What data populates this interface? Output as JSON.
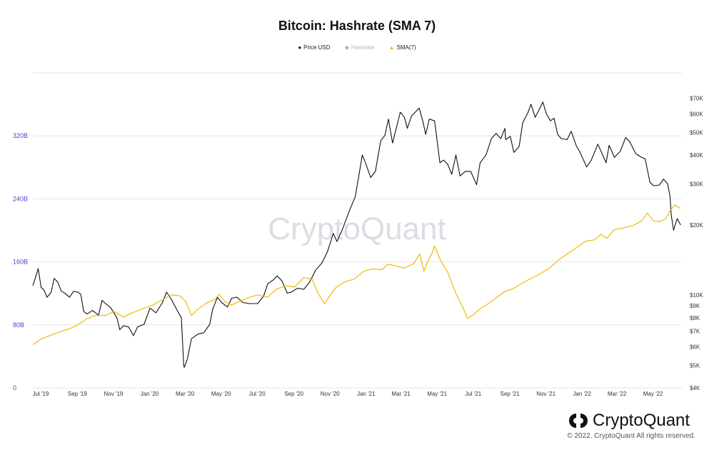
{
  "chart_data": {
    "type": "line",
    "title": "Bitcoin: Hashrate (SMA 7)",
    "watermark": "CryptoQuant",
    "x_ticks": [
      "Jul '19",
      "Sep '19",
      "Nov '19",
      "Jan '20",
      "Mar '20",
      "May '20",
      "Jul '20",
      "Sep '20",
      "Nov '20",
      "Jan '21",
      "Mar '21",
      "May '21",
      "Jul '21",
      "Sep '21",
      "Nov '21",
      "Jan '22",
      "Mar '22",
      "May '22"
    ],
    "y_left": {
      "ticks": [
        "0",
        "80B",
        "160B",
        "240B",
        "320B"
      ],
      "values": [
        0,
        80,
        160,
        240,
        320
      ],
      "range": [
        0,
        400
      ],
      "unit": "B"
    },
    "y_right": {
      "scale": "log",
      "ticks": [
        "$4K",
        "$5K",
        "$6K",
        "$7K",
        "$8K",
        "$9K",
        "$10K",
        "$20K",
        "$30K",
        "$40K",
        "$50K",
        "$60K",
        "$70K"
      ],
      "values": [
        4,
        5,
        6,
        7,
        8,
        9,
        10,
        20,
        30,
        40,
        50,
        60,
        70
      ],
      "range": [
        4,
        90
      ],
      "unit": "K USD"
    },
    "legend_placement": "top-center",
    "grid": "horizontal",
    "series": [
      {
        "name": "Price USD",
        "color": "#111111",
        "axis": "right",
        "visible": true,
        "points": [
          [
            "2019-07-01",
            11.0
          ],
          [
            "2019-07-05",
            11.8
          ],
          [
            "2019-07-10",
            13.0
          ],
          [
            "2019-07-15",
            10.8
          ],
          [
            "2019-07-20",
            10.5
          ],
          [
            "2019-07-25",
            9.8
          ],
          [
            "2019-08-01",
            10.3
          ],
          [
            "2019-08-06",
            11.8
          ],
          [
            "2019-08-12",
            11.4
          ],
          [
            "2019-08-18",
            10.4
          ],
          [
            "2019-08-24",
            10.2
          ],
          [
            "2019-09-01",
            9.8
          ],
          [
            "2019-09-08",
            10.4
          ],
          [
            "2019-09-15",
            10.3
          ],
          [
            "2019-09-20",
            10.1
          ],
          [
            "2019-09-25",
            8.5
          ],
          [
            "2019-10-01",
            8.3
          ],
          [
            "2019-10-10",
            8.6
          ],
          [
            "2019-10-20",
            8.2
          ],
          [
            "2019-10-26",
            9.5
          ],
          [
            "2019-11-01",
            9.2
          ],
          [
            "2019-11-10",
            8.8
          ],
          [
            "2019-11-20",
            8.0
          ],
          [
            "2019-11-25",
            7.1
          ],
          [
            "2019-12-01",
            7.4
          ],
          [
            "2019-12-10",
            7.3
          ],
          [
            "2019-12-18",
            6.7
          ],
          [
            "2019-12-25",
            7.3
          ],
          [
            "2020-01-05",
            7.5
          ],
          [
            "2020-01-15",
            8.8
          ],
          [
            "2020-01-25",
            8.4
          ],
          [
            "2020-02-05",
            9.3
          ],
          [
            "2020-02-12",
            10.3
          ],
          [
            "2020-02-20",
            9.6
          ],
          [
            "2020-03-01",
            8.6
          ],
          [
            "2020-03-08",
            8.0
          ],
          [
            "2020-03-12",
            5.0
          ],
          [
            "2020-03-13",
            4.9
          ],
          [
            "2020-03-18",
            5.3
          ],
          [
            "2020-03-25",
            6.5
          ],
          [
            "2020-04-05",
            6.8
          ],
          [
            "2020-04-15",
            6.9
          ],
          [
            "2020-04-25",
            7.5
          ],
          [
            "2020-04-30",
            8.7
          ],
          [
            "2020-05-08",
            9.8
          ],
          [
            "2020-05-15",
            9.3
          ],
          [
            "2020-05-25",
            8.9
          ],
          [
            "2020-06-01",
            9.7
          ],
          [
            "2020-06-10",
            9.8
          ],
          [
            "2020-06-20",
            9.3
          ],
          [
            "2020-07-01",
            9.2
          ],
          [
            "2020-07-15",
            9.2
          ],
          [
            "2020-07-25",
            9.9
          ],
          [
            "2020-08-01",
            11.2
          ],
          [
            "2020-08-10",
            11.6
          ],
          [
            "2020-08-17",
            12.1
          ],
          [
            "2020-08-25",
            11.5
          ],
          [
            "2020-09-03",
            10.2
          ],
          [
            "2020-09-10",
            10.3
          ],
          [
            "2020-09-20",
            10.7
          ],
          [
            "2020-10-01",
            10.6
          ],
          [
            "2020-10-10",
            11.3
          ],
          [
            "2020-10-21",
            12.8
          ],
          [
            "2020-11-01",
            13.8
          ],
          [
            "2020-11-10",
            15.4
          ],
          [
            "2020-11-20",
            18.4
          ],
          [
            "2020-11-26",
            17.0
          ],
          [
            "2020-12-05",
            19.1
          ],
          [
            "2020-12-17",
            23.0
          ],
          [
            "2020-12-27",
            26.5
          ],
          [
            "2021-01-08",
            40.0
          ],
          [
            "2021-01-15",
            36.0
          ],
          [
            "2021-01-22",
            32.0
          ],
          [
            "2021-01-30",
            34.0
          ],
          [
            "2021-02-08",
            46.0
          ],
          [
            "2021-02-15",
            48.5
          ],
          [
            "2021-02-21",
            57.0
          ],
          [
            "2021-02-28",
            45.0
          ],
          [
            "2021-03-13",
            61.0
          ],
          [
            "2021-03-20",
            58.0
          ],
          [
            "2021-03-25",
            52.0
          ],
          [
            "2021-04-01",
            58.7
          ],
          [
            "2021-04-14",
            63.5
          ],
          [
            "2021-04-20",
            56.0
          ],
          [
            "2021-04-25",
            49.0
          ],
          [
            "2021-05-01",
            57.0
          ],
          [
            "2021-05-10",
            56.0
          ],
          [
            "2021-05-13",
            49.0
          ],
          [
            "2021-05-19",
            37.0
          ],
          [
            "2021-05-25",
            38.0
          ],
          [
            "2021-06-01",
            36.5
          ],
          [
            "2021-06-08",
            33.0
          ],
          [
            "2021-06-15",
            40.0
          ],
          [
            "2021-06-22",
            32.5
          ],
          [
            "2021-07-01",
            34.0
          ],
          [
            "2021-07-10",
            34.0
          ],
          [
            "2021-07-20",
            29.8
          ],
          [
            "2021-07-26",
            37.0
          ],
          [
            "2021-08-05",
            40.0
          ],
          [
            "2021-08-14",
            47.0
          ],
          [
            "2021-08-22",
            49.5
          ],
          [
            "2021-08-30",
            47.0
          ],
          [
            "2021-09-06",
            52.0
          ],
          [
            "2021-09-07",
            46.5
          ],
          [
            "2021-09-15",
            48.0
          ],
          [
            "2021-09-21",
            41.0
          ],
          [
            "2021-09-30",
            43.5
          ],
          [
            "2021-10-06",
            55.0
          ],
          [
            "2021-10-15",
            61.0
          ],
          [
            "2021-10-20",
            66.0
          ],
          [
            "2021-10-27",
            58.0
          ],
          [
            "2021-11-02",
            62.0
          ],
          [
            "2021-11-09",
            67.5
          ],
          [
            "2021-11-15",
            60.0
          ],
          [
            "2021-11-22",
            56.0
          ],
          [
            "2021-11-28",
            57.5
          ],
          [
            "2021-12-04",
            49.0
          ],
          [
            "2021-12-10",
            47.0
          ],
          [
            "2021-12-20",
            46.5
          ],
          [
            "2021-12-27",
            50.5
          ],
          [
            "2022-01-05",
            43.5
          ],
          [
            "2022-01-10",
            41.5
          ],
          [
            "2022-01-22",
            35.5
          ],
          [
            "2022-01-30",
            38.0
          ],
          [
            "2022-02-10",
            44.5
          ],
          [
            "2022-02-18",
            40.0
          ],
          [
            "2022-02-24",
            37.0
          ],
          [
            "2022-03-01",
            44.0
          ],
          [
            "2022-03-10",
            39.0
          ],
          [
            "2022-03-20",
            41.5
          ],
          [
            "2022-03-29",
            47.5
          ],
          [
            "2022-04-05",
            45.5
          ],
          [
            "2022-04-15",
            40.5
          ],
          [
            "2022-04-25",
            39.0
          ],
          [
            "2022-05-01",
            38.5
          ],
          [
            "2022-05-09",
            30.5
          ],
          [
            "2022-05-15",
            29.5
          ],
          [
            "2022-05-25",
            29.7
          ],
          [
            "2022-06-01",
            31.5
          ],
          [
            "2022-06-08",
            30.0
          ],
          [
            "2022-06-12",
            26.6
          ],
          [
            "2022-06-14",
            22.1
          ],
          [
            "2022-06-18",
            19.0
          ],
          [
            "2022-06-24",
            21.3
          ],
          [
            "2022-06-30",
            20.0
          ]
        ]
      },
      {
        "name": "Hashrate",
        "color": "#aaaaaa",
        "axis": "left",
        "visible": false,
        "points": []
      },
      {
        "name": "SMA(7)",
        "color": "#f0b90b",
        "axis": "left",
        "visible": true,
        "points": [
          [
            "2019-07-01",
            55
          ],
          [
            "2019-07-15",
            62
          ],
          [
            "2019-08-01",
            67
          ],
          [
            "2019-08-15",
            71
          ],
          [
            "2019-09-01",
            75
          ],
          [
            "2019-09-15",
            80
          ],
          [
            "2019-10-01",
            88
          ],
          [
            "2019-10-15",
            92
          ],
          [
            "2019-11-01",
            92
          ],
          [
            "2019-11-15",
            97
          ],
          [
            "2019-12-01",
            90
          ],
          [
            "2019-12-15",
            95
          ],
          [
            "2020-01-01",
            100
          ],
          [
            "2020-01-20",
            105
          ],
          [
            "2020-02-05",
            112
          ],
          [
            "2020-02-20",
            118
          ],
          [
            "2020-03-05",
            117
          ],
          [
            "2020-03-15",
            110
          ],
          [
            "2020-03-25",
            92
          ],
          [
            "2020-04-05",
            100
          ],
          [
            "2020-04-20",
            108
          ],
          [
            "2020-05-05",
            113
          ],
          [
            "2020-05-11",
            119
          ],
          [
            "2020-05-20",
            110
          ],
          [
            "2020-06-01",
            105
          ],
          [
            "2020-06-15",
            110
          ],
          [
            "2020-07-01",
            115
          ],
          [
            "2020-07-15",
            118
          ],
          [
            "2020-08-01",
            115
          ],
          [
            "2020-08-15",
            125
          ],
          [
            "2020-09-01",
            130
          ],
          [
            "2020-09-15",
            128
          ],
          [
            "2020-10-01",
            140
          ],
          [
            "2020-10-15",
            138
          ],
          [
            "2020-10-25",
            120
          ],
          [
            "2020-11-05",
            107
          ],
          [
            "2020-11-15",
            118
          ],
          [
            "2020-11-25",
            128
          ],
          [
            "2020-12-10",
            135
          ],
          [
            "2020-12-25",
            138
          ],
          [
            "2021-01-10",
            148
          ],
          [
            "2021-01-25",
            151
          ],
          [
            "2021-02-10",
            150
          ],
          [
            "2021-02-20",
            157
          ],
          [
            "2021-03-05",
            155
          ],
          [
            "2021-03-20",
            152
          ],
          [
            "2021-04-05",
            158
          ],
          [
            "2021-04-15",
            170
          ],
          [
            "2021-04-22",
            148
          ],
          [
            "2021-04-28",
            160
          ],
          [
            "2021-05-05",
            170
          ],
          [
            "2021-05-10",
            180
          ],
          [
            "2021-05-20",
            162
          ],
          [
            "2021-06-01",
            147
          ],
          [
            "2021-06-15",
            120
          ],
          [
            "2021-06-28",
            100
          ],
          [
            "2021-07-05",
            88
          ],
          [
            "2021-07-15",
            93
          ],
          [
            "2021-07-25",
            100
          ],
          [
            "2021-08-05",
            105
          ],
          [
            "2021-08-20",
            113
          ],
          [
            "2021-09-05",
            122
          ],
          [
            "2021-09-20",
            126
          ],
          [
            "2021-10-05",
            133
          ],
          [
            "2021-10-20",
            139
          ],
          [
            "2021-11-05",
            145
          ],
          [
            "2021-11-20",
            152
          ],
          [
            "2021-12-05",
            162
          ],
          [
            "2021-12-20",
            170
          ],
          [
            "2022-01-05",
            178
          ],
          [
            "2022-01-20",
            186
          ],
          [
            "2022-02-05",
            188
          ],
          [
            "2022-02-15",
            195
          ],
          [
            "2022-02-25",
            190
          ],
          [
            "2022-03-10",
            201
          ],
          [
            "2022-03-25",
            203
          ],
          [
            "2022-04-10",
            206
          ],
          [
            "2022-04-25",
            212
          ],
          [
            "2022-05-05",
            222
          ],
          [
            "2022-05-15",
            212
          ],
          [
            "2022-05-25",
            211
          ],
          [
            "2022-06-05",
            215
          ],
          [
            "2022-06-12",
            225
          ],
          [
            "2022-06-20",
            232
          ],
          [
            "2022-06-30",
            228
          ]
        ]
      }
    ]
  },
  "legend": {
    "items": [
      {
        "label": "Price USD",
        "symbol": "●",
        "color": "#111111",
        "active": true
      },
      {
        "label": "Hashrate",
        "symbol": "◆",
        "color": "#b5b5b5",
        "active": false
      },
      {
        "label": "SMA(7)",
        "symbol": "▲",
        "color": "#f0b90b",
        "active": true
      }
    ]
  },
  "brand": {
    "name": "CryptoQuant"
  },
  "footer": {
    "copyright": "© 2022. CryptoQuant All rights reserved."
  },
  "colors": {
    "left_axis_text": "#4b3fd6",
    "right_axis_text": "#333333",
    "grid": "#e6e6e6",
    "price": "#111111",
    "sma": "#f0b90b",
    "watermark": "#dcdde3"
  }
}
